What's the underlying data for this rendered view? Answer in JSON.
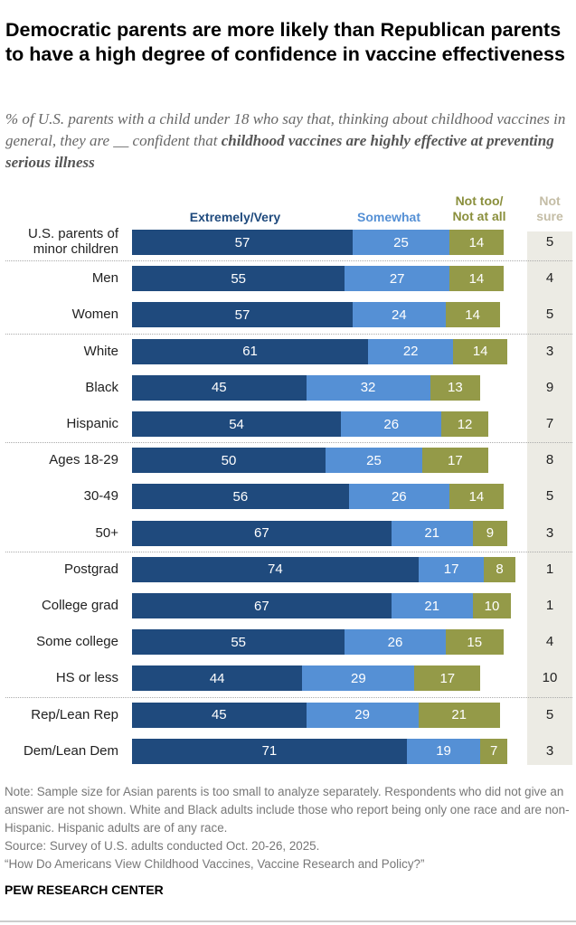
{
  "title": "Democratic parents are more likely than Republican parents to have a high degree of confidence in vaccine effectiveness",
  "subtitle_plain": "% of U.S. parents with a child under 18 who say that, thinking about childhood vaccines in general, they are __ confident that ",
  "subtitle_bold": "childhood vaccines are highly effective at preventing serious illness",
  "chart_data": {
    "type": "bar",
    "orientation": "horizontal-stacked",
    "series": [
      {
        "name": "Extremely/Very",
        "color": "#1f4a7d",
        "values": [
          57,
          55,
          57,
          61,
          45,
          54,
          50,
          56,
          67,
          74,
          67,
          55,
          44,
          45,
          71
        ]
      },
      {
        "name": "Somewhat",
        "color": "#5590d5",
        "values": [
          25,
          27,
          24,
          22,
          32,
          26,
          25,
          26,
          21,
          17,
          21,
          26,
          29,
          29,
          19
        ]
      },
      {
        "name": "Not too/ Not at all",
        "color": "#949a48",
        "values": [
          14,
          14,
          14,
          14,
          13,
          12,
          17,
          14,
          9,
          8,
          10,
          15,
          17,
          21,
          7
        ]
      },
      {
        "name": "Not sure",
        "color": "#c4bda6",
        "values": [
          5,
          4,
          5,
          3,
          9,
          7,
          8,
          5,
          3,
          1,
          1,
          4,
          10,
          5,
          3
        ]
      }
    ],
    "categories": [
      "U.S. parents of minor children",
      "Men",
      "Women",
      "White",
      "Black",
      "Hispanic",
      "Ages 18-29",
      "30-49",
      "50+",
      "Postgrad",
      "College grad",
      "Some college",
      "HS or less",
      "Rep/Lean Rep",
      "Dem/Lean Dem"
    ],
    "group_breaks_after": [
      0,
      2,
      5,
      8,
      12
    ]
  },
  "headers": {
    "extremely": "Extremely/Very",
    "somewhat": "Somewhat",
    "nottoo_1": "Not too/",
    "nottoo_2": "Not at all",
    "notsure_1": "Not",
    "notsure_2": "sure"
  },
  "label_lines": {
    "first_1": "U.S. parents of",
    "first_2": "minor children"
  },
  "note": "Note: Sample size for Asian parents is too small to analyze separately. Respondents who did not give an answer are not shown. White and Black adults include those who report being only one race and are non-Hispanic. Hispanic adults are of any race.",
  "source": "Source: Survey of U.S. adults conducted Oct. 20-26, 2025.",
  "report": "“How Do Americans View Childhood Vaccines, Vaccine Research and Policy?”",
  "brand": "PEW RESEARCH CENTER"
}
